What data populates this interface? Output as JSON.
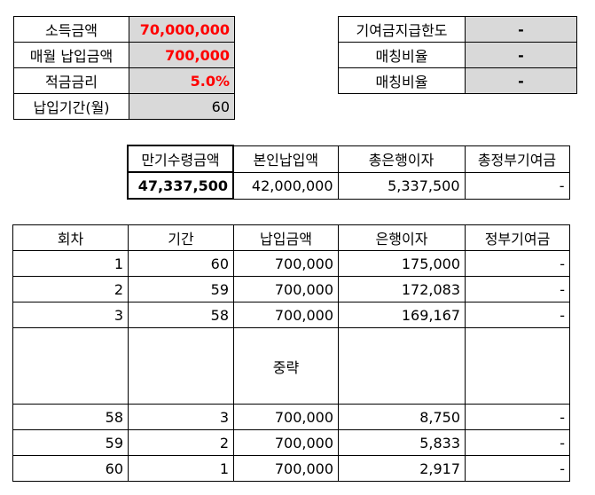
{
  "inputs": {
    "income_label": "소득금액",
    "income_value": "70,000,000",
    "monthly_payment_label": "매월 납입금액",
    "monthly_payment_value": "700,000",
    "interest_rate_label": "적금금리",
    "interest_rate_value": "5.0%",
    "period_label": "납입기간(월)",
    "period_value": "60"
  },
  "matching": {
    "limit_label": "기여금지급한도",
    "limit_value": "-",
    "ratio1_label": "매칭비율",
    "ratio1_value": "-",
    "ratio2_label": "매칭비율",
    "ratio2_value": "-"
  },
  "summary": {
    "headers": [
      "만기수령금액",
      "본인납입액",
      "총은행이자",
      "총정부기여금"
    ],
    "values": [
      "47,337,500",
      "42,000,000",
      "5,337,500",
      "-"
    ]
  },
  "schedule": {
    "headers": [
      "회차",
      "기간",
      "납입금액",
      "은행이자",
      "정부기여금"
    ],
    "rows_top": [
      [
        "1",
        "60",
        "700,000",
        "175,000",
        "-"
      ],
      [
        "2",
        "59",
        "700,000",
        "172,083",
        "-"
      ],
      [
        "3",
        "58",
        "700,000",
        "169,167",
        "-"
      ]
    ],
    "omitted_label": "중략",
    "rows_bottom": [
      [
        "58",
        "3",
        "700,000",
        "8,750",
        "-"
      ],
      [
        "59",
        "2",
        "700,000",
        "5,833",
        "-"
      ],
      [
        "60",
        "1",
        "700,000",
        "2,917",
        "-"
      ]
    ]
  }
}
